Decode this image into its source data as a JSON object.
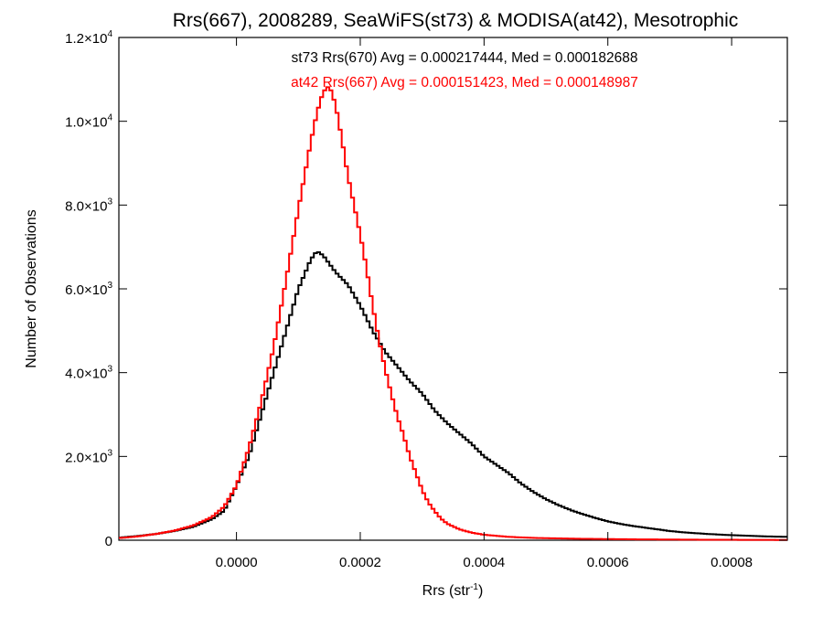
{
  "chart_data": {
    "type": "histogram",
    "title": "Rrs(667), 2008289, SeaWiFS(st73) & MODISA(at42), Mesotrophic",
    "xlabel": {
      "text": "Rrs (str",
      "sup": "-1",
      "close": ")"
    },
    "ylabel": "Number of Observations",
    "xlim": [
      -0.00019,
      0.00089
    ],
    "ylim": [
      0,
      12000
    ],
    "x_ticks": [
      {
        "value": 0.0,
        "label": "0.0000"
      },
      {
        "value": 0.0002,
        "label": "0.0002"
      },
      {
        "value": 0.0004,
        "label": "0.0004"
      },
      {
        "value": 0.0006,
        "label": "0.0006"
      },
      {
        "value": 0.0008,
        "label": "0.0008"
      }
    ],
    "y_ticks": [
      {
        "value": 0,
        "mant": "0",
        "exp": ""
      },
      {
        "value": 2000,
        "mant": "2.0×10",
        "exp": "3"
      },
      {
        "value": 4000,
        "mant": "4.0×10",
        "exp": "3"
      },
      {
        "value": 6000,
        "mant": "6.0×10",
        "exp": "3"
      },
      {
        "value": 8000,
        "mant": "8.0×10",
        "exp": "3"
      },
      {
        "value": 10000,
        "mant": "1.0×10",
        "exp": "4"
      },
      {
        "value": 12000,
        "mant": "1.2×10",
        "exp": "4"
      }
    ],
    "annotations": [
      {
        "text": "st73 Rrs(670) Avg = 0.000217444, Med = 0.000182688",
        "color": "#000000"
      },
      {
        "text": "at42 Rrs(667) Avg = 0.000151423, Med = 0.000148987",
        "color": "#ff0000"
      }
    ],
    "series": [
      {
        "color": "#000000",
        "points": [
          [
            -0.00019,
            60
          ],
          [
            -0.00016,
            100
          ],
          [
            -0.00013,
            150
          ],
          [
            -0.0001,
            220
          ],
          [
            -7e-05,
            320
          ],
          [
            -4e-05,
            500
          ],
          [
            -2e-05,
            700
          ],
          [
            0.0,
            1300
          ],
          [
            2e-05,
            2000
          ],
          [
            4e-05,
            3000
          ],
          [
            6e-05,
            4000
          ],
          [
            8e-05,
            5000
          ],
          [
            0.0001,
            6000
          ],
          [
            0.00012,
            6700
          ],
          [
            0.00013,
            6900
          ],
          [
            0.00014,
            6800
          ],
          [
            0.00016,
            6400
          ],
          [
            0.00018,
            6100
          ],
          [
            0.0002,
            5600
          ],
          [
            0.00022,
            5000
          ],
          [
            0.00024,
            4500
          ],
          [
            0.00026,
            4150
          ],
          [
            0.00028,
            3800
          ],
          [
            0.0003,
            3500
          ],
          [
            0.00032,
            3100
          ],
          [
            0.00034,
            2800
          ],
          [
            0.00036,
            2550
          ],
          [
            0.00038,
            2300
          ],
          [
            0.0004,
            2000
          ],
          [
            0.00042,
            1800
          ],
          [
            0.00044,
            1600
          ],
          [
            0.00046,
            1350
          ],
          [
            0.00048,
            1150
          ],
          [
            0.0005,
            980
          ],
          [
            0.00052,
            840
          ],
          [
            0.00054,
            720
          ],
          [
            0.00056,
            620
          ],
          [
            0.00058,
            530
          ],
          [
            0.0006,
            450
          ],
          [
            0.00062,
            390
          ],
          [
            0.00064,
            340
          ],
          [
            0.00066,
            300
          ],
          [
            0.00068,
            260
          ],
          [
            0.0007,
            220
          ],
          [
            0.00072,
            190
          ],
          [
            0.00074,
            170
          ],
          [
            0.00076,
            150
          ],
          [
            0.00078,
            135
          ],
          [
            0.0008,
            120
          ],
          [
            0.00082,
            110
          ],
          [
            0.00084,
            100
          ],
          [
            0.00086,
            90
          ],
          [
            0.00089,
            80
          ]
        ]
      },
      {
        "color": "#ff0000",
        "points": [
          [
            -0.00019,
            50
          ],
          [
            -0.00016,
            90
          ],
          [
            -0.00013,
            150
          ],
          [
            -0.0001,
            230
          ],
          [
            -7e-05,
            350
          ],
          [
            -4e-05,
            550
          ],
          [
            -2e-05,
            800
          ],
          [
            0.0,
            1300
          ],
          [
            2e-05,
            2200
          ],
          [
            4e-05,
            3300
          ],
          [
            6e-05,
            4600
          ],
          [
            8e-05,
            6200
          ],
          [
            0.0001,
            7900
          ],
          [
            0.00012,
            9500
          ],
          [
            0.00013,
            10200
          ],
          [
            0.00014,
            10700
          ],
          [
            0.00015,
            10850
          ],
          [
            0.00016,
            10400
          ],
          [
            0.00017,
            9600
          ],
          [
            0.00018,
            8700
          ],
          [
            0.00019,
            8000
          ],
          [
            0.0002,
            7300
          ],
          [
            0.00021,
            6500
          ],
          [
            0.00022,
            5600
          ],
          [
            0.00023,
            4800
          ],
          [
            0.00024,
            4100
          ],
          [
            0.00025,
            3500
          ],
          [
            0.00026,
            2950
          ],
          [
            0.00027,
            2500
          ],
          [
            0.00028,
            2000
          ],
          [
            0.00029,
            1600
          ],
          [
            0.0003,
            1200
          ],
          [
            0.00031,
            900
          ],
          [
            0.00032,
            700
          ],
          [
            0.00033,
            520
          ],
          [
            0.00034,
            400
          ],
          [
            0.00036,
            260
          ],
          [
            0.00038,
            180
          ],
          [
            0.0004,
            130
          ],
          [
            0.00044,
            80
          ],
          [
            0.00048,
            55
          ],
          [
            0.00055,
            35
          ],
          [
            0.00065,
            20
          ],
          [
            0.00075,
            12
          ],
          [
            0.00089,
            6
          ]
        ]
      }
    ]
  }
}
